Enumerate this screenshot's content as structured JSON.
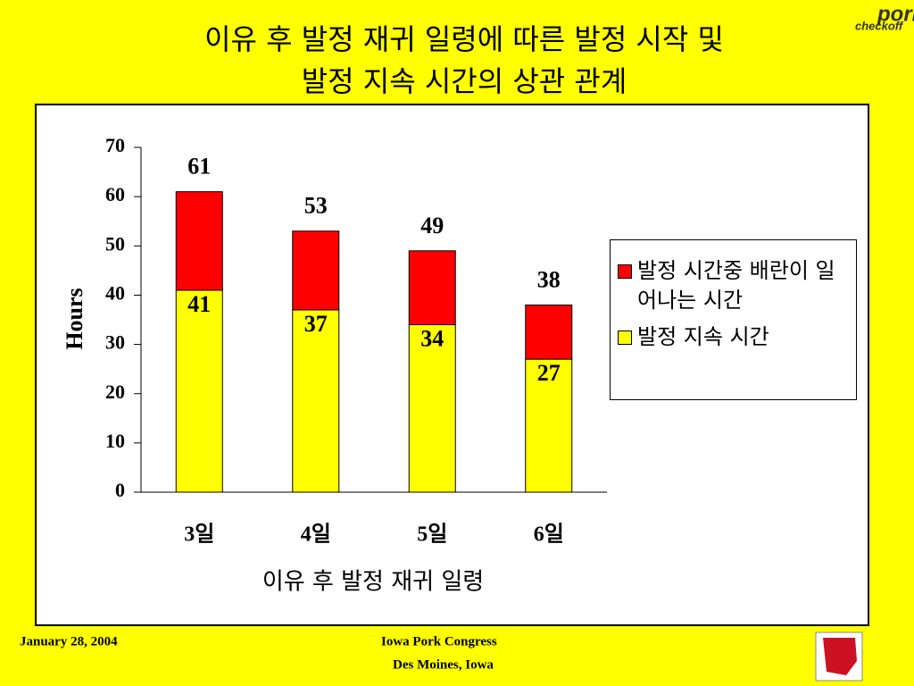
{
  "chart_data": {
    "type": "bar",
    "stacked": true,
    "title": [
      "이유 후 발정 재귀 일령에 따른 발정 시작 및",
      "발정 지속 시간의 상관 관계"
    ],
    "x_label": "이유 후 발정 재귀 일령",
    "y_label": "Hours",
    "categories": [
      "3일",
      "4일",
      "5일",
      "6일"
    ],
    "series": [
      {
        "name": "발정 지속 시간",
        "color": "#ffff00",
        "values": [
          41,
          37,
          34,
          27
        ]
      },
      {
        "name": "발정 시간중 배란이 일어나는 시간",
        "color": "#ff0000",
        "values": [
          20,
          16,
          15,
          11
        ]
      }
    ],
    "totals": [
      61,
      53,
      49,
      38
    ],
    "ylim": [
      0,
      70
    ],
    "yticks": [
      0,
      10,
      20,
      30,
      40,
      50,
      60,
      70
    ],
    "grid": false,
    "legend": "right"
  },
  "logo": {
    "line1": "pork",
    "line2": "checkoff"
  },
  "footer": {
    "date": "January 28, 2004",
    "event": "Iowa Pork Congress",
    "place": "Des Moines, Iowa"
  }
}
